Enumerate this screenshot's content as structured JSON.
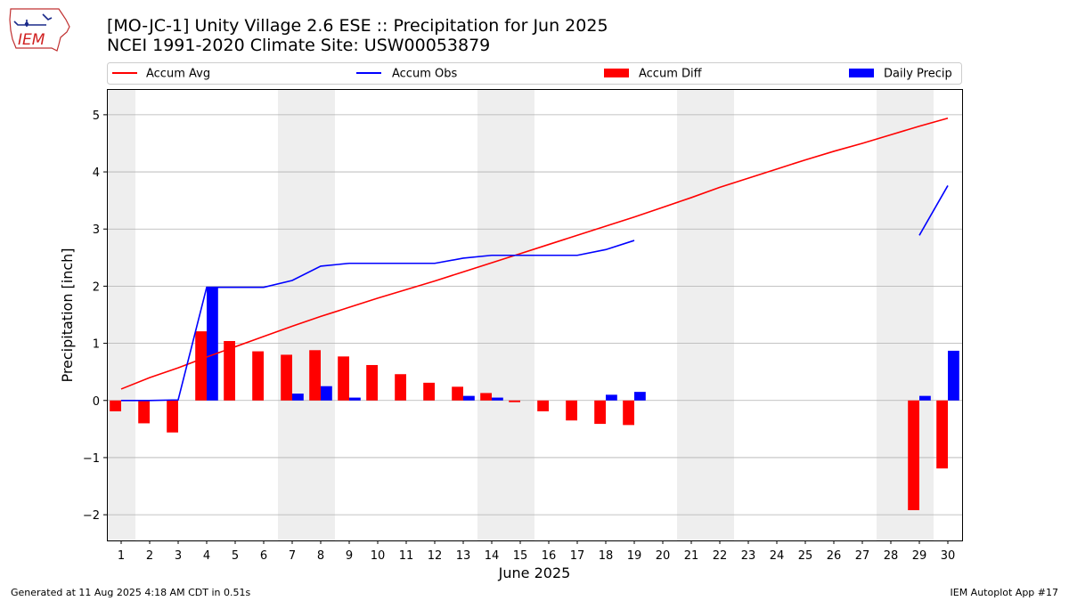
{
  "header": {
    "title_line1": "[MO-JC-1] Unity Village 2.6 ESE :: Precipitation for Jun 2025",
    "title_line2": "NCEI 1991-2020 Climate Site: USW00053879",
    "logo_text": "IEM"
  },
  "footer": {
    "left": "Generated at 11 Aug 2025 4:18 AM CDT in 0.51s",
    "right": "IEM Autoplot App #17"
  },
  "chart_data": {
    "type": "bar",
    "xlabel": "June 2025",
    "ylabel": "Precipitation [inch]",
    "ylim": [
      -2.45,
      5.45
    ],
    "xlim": [
      0.5,
      30.5
    ],
    "yticks": [
      -2,
      -1,
      0,
      1,
      2,
      3,
      4,
      5
    ],
    "ytick_labels": [
      "−2",
      "−1",
      "0",
      "1",
      "2",
      "3",
      "4",
      "5"
    ],
    "xticks": [
      1,
      2,
      3,
      4,
      5,
      6,
      7,
      8,
      9,
      10,
      11,
      12,
      13,
      14,
      15,
      16,
      17,
      18,
      19,
      20,
      21,
      22,
      23,
      24,
      25,
      26,
      27,
      28,
      29,
      30
    ],
    "xtick_labels": [
      "1",
      "2",
      "3",
      "4",
      "5",
      "6",
      "7",
      "8",
      "9",
      "10",
      "11",
      "12",
      "13",
      "14",
      "15",
      "16",
      "17",
      "18",
      "19",
      "20",
      "21",
      "22",
      "23",
      "24",
      "25",
      "26",
      "27",
      "28",
      "29",
      "30"
    ],
    "grid": "horizontal",
    "weekend_shading": [
      [
        0.5,
        1.5
      ],
      [
        6.5,
        8.5
      ],
      [
        13.5,
        15.5
      ],
      [
        20.5,
        22.5
      ],
      [
        27.5,
        29.5
      ]
    ],
    "legend": {
      "placement": "top",
      "entries": [
        {
          "label": "Accum Avg",
          "kind": "line",
          "color": "#ff0000"
        },
        {
          "label": "Accum Obs",
          "kind": "line",
          "color": "#0000ff"
        },
        {
          "label": "Accum Diff",
          "kind": "bar",
          "color": "#ff0000"
        },
        {
          "label": "Daily Precip",
          "kind": "bar",
          "color": "#0000ff"
        }
      ]
    },
    "series": [
      {
        "name": "Accum Avg",
        "kind": "line",
        "color": "#ff0000",
        "x": [
          1,
          2,
          3,
          4,
          5,
          6,
          7,
          8,
          9,
          10,
          11,
          12,
          13,
          14,
          15,
          16,
          17,
          18,
          19,
          20,
          21,
          22,
          23,
          24,
          25,
          26,
          27,
          28,
          29,
          30
        ],
        "values": [
          0.2,
          0.4,
          0.57,
          0.76,
          0.94,
          1.12,
          1.3,
          1.47,
          1.63,
          1.79,
          1.94,
          2.09,
          2.25,
          2.41,
          2.57,
          2.73,
          2.89,
          3.05,
          3.21,
          3.38,
          3.55,
          3.73,
          3.89,
          4.05,
          4.21,
          4.36,
          4.5,
          4.65,
          4.8,
          4.94
        ]
      },
      {
        "name": "Accum Obs",
        "kind": "line",
        "color": "#0000ff",
        "segments": [
          {
            "x": [
              1,
              2,
              3,
              4,
              5,
              6,
              7,
              8,
              9,
              10,
              11,
              12,
              13,
              14,
              15,
              16,
              17,
              18,
              19
            ],
            "values": [
              0.0,
              0.0,
              0.01,
              1.98,
              1.98,
              1.98,
              2.1,
              2.35,
              2.4,
              2.4,
              2.4,
              2.4,
              2.49,
              2.54,
              2.54,
              2.54,
              2.54,
              2.64,
              2.8
            ]
          },
          {
            "x": [
              29,
              30
            ],
            "values": [
              2.89,
              3.76
            ]
          }
        ]
      },
      {
        "name": "Accum Diff",
        "kind": "bar",
        "color": "#ff0000",
        "x": [
          1,
          2,
          3,
          4,
          5,
          6,
          7,
          8,
          9,
          10,
          11,
          12,
          13,
          14,
          15,
          16,
          17,
          18,
          19,
          29,
          30
        ],
        "values": [
          -0.19,
          -0.4,
          -0.56,
          1.21,
          1.04,
          0.86,
          0.8,
          0.88,
          0.77,
          0.62,
          0.46,
          0.31,
          0.24,
          0.13,
          -0.03,
          -0.19,
          -0.35,
          -0.41,
          -0.43,
          -1.92,
          -1.19
        ]
      },
      {
        "name": "Daily Precip",
        "kind": "bar",
        "color": "#0000ff",
        "x": [
          4,
          7,
          8,
          9,
          13,
          14,
          18,
          19,
          29,
          30
        ],
        "values": [
          1.97,
          0.12,
          0.25,
          0.05,
          0.08,
          0.05,
          0.1,
          0.15,
          0.08,
          0.87
        ]
      }
    ]
  }
}
